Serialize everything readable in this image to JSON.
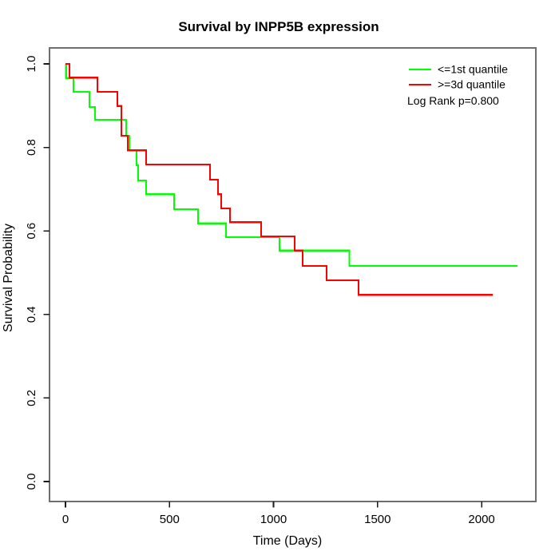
{
  "chart_data": {
    "type": "line",
    "subtype": "kaplan-meier-step",
    "title": "Survival by INPP5B expression",
    "xlabel": "Time (Days)",
    "ylabel": "Survival Probability",
    "xlim": [
      0,
      2280
    ],
    "ylim": [
      0.0,
      1.0
    ],
    "grid": false,
    "legend_position": "topright",
    "annotation": "Log Rank p=0.800",
    "x_ticks": {
      "values": [
        0,
        500,
        1000,
        1500,
        2000
      ],
      "labels": [
        "0",
        "500",
        "1000",
        "1500",
        "2000"
      ]
    },
    "y_ticks": {
      "values": [
        0.0,
        0.2,
        0.4,
        0.6,
        0.8,
        1.0
      ],
      "labels": [
        "0.0",
        "0.2",
        "0.4",
        "0.6",
        "0.8",
        "1.0"
      ]
    },
    "series": [
      {
        "name": "<=1st quantile",
        "color": "#00ff00",
        "times": [
          0,
          3,
          38,
          115,
          142,
          292,
          307,
          342,
          349,
          388,
          522,
          637,
          772,
          1029,
          1365
        ],
        "surv": [
          1.0,
          0.966,
          0.933,
          0.897,
          0.866,
          0.828,
          0.793,
          0.757,
          0.721,
          0.688,
          0.652,
          0.618,
          0.585,
          0.553,
          0.516
        ],
        "end_time": 2173
      },
      {
        "name": ">=3d quantile",
        "color": "#ff0000",
        "times": [
          0,
          19,
          154,
          250,
          269,
          299,
          388,
          695,
          733,
          749,
          791,
          940,
          1102,
          1140,
          1255,
          1409
        ],
        "surv": [
          1.0,
          0.967,
          0.933,
          0.899,
          0.828,
          0.793,
          0.759,
          0.723,
          0.688,
          0.654,
          0.621,
          0.587,
          0.553,
          0.516,
          0.482,
          0.447
        ],
        "end_time": 2054
      }
    ]
  }
}
